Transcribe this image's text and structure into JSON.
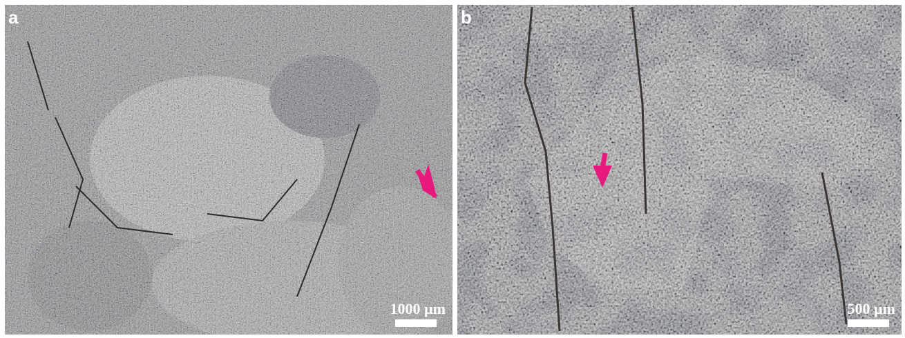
{
  "panels": [
    {
      "label": "a",
      "scale_bar": "1000 µm"
    },
    {
      "label": "b",
      "scale_bar": "500 µm"
    }
  ]
}
